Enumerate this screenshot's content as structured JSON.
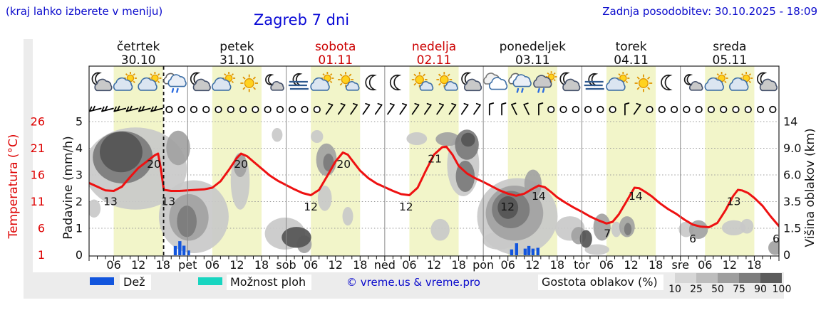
{
  "header": {
    "hint": "(kraj lahko izberete v meniju)",
    "title": "Zagreb 7 dni",
    "updated": "Zadnja posodobitev: 30.10.2025 - 18:09"
  },
  "axes": {
    "temp_label": "Temperatura (°C)",
    "temp_ticks": [
      26,
      21,
      16,
      11,
      6,
      1
    ],
    "precip_label": "Padavine (mm/h)",
    "precip_ticks": [
      5,
      4,
      3,
      2,
      1,
      0
    ],
    "cloud_label": "Višina oblakov (km)",
    "cloud_ticks": [
      "14",
      "9.0",
      "6.0",
      "3.5",
      "1.5",
      "0"
    ],
    "cloud_tick_km": [
      14,
      9,
      6,
      3.5,
      1.5,
      0
    ]
  },
  "legend": {
    "rain": "Dež",
    "showers": "Možnost ploh",
    "copyright": "© vreme.us & vreme.pro",
    "cloud_density": "Gostota oblakov (%)",
    "density_ticks": [
      "10",
      "25",
      "50",
      "75",
      "90",
      "100"
    ],
    "density_colors": [
      "#d6d6d6",
      "#bdbdbd",
      "#9e9e9e",
      "#7d7d7d",
      "#5c5c5c"
    ],
    "rain_color": "#1255dd",
    "showers_color": "#17d5c0"
  },
  "colors": {
    "day_band": "#f2f5c9",
    "grid": "#999999",
    "day_separator": "#8a8a8a",
    "temp_line": "#ee1111",
    "rain_bar": "#1255dd",
    "day_red": "#cc0000",
    "cloud_shades": {
      "25": "#c9c9c9",
      "40": "#b6b6b6",
      "50": "#a2a2a2",
      "75": "#7b7b7b",
      "90": "#555555"
    }
  },
  "chart_data": {
    "type": "meteogram",
    "title": "Zagreb 7 dni",
    "x_axis": "time, 7 days × 24 h, ticks every 6 h",
    "days": [
      {
        "name": "četrtek",
        "date": "30.10",
        "highlight": false
      },
      {
        "name": "petek",
        "date": "31.10",
        "highlight": false
      },
      {
        "name": "sobota",
        "date": "01.11",
        "highlight": true
      },
      {
        "name": "nedelja",
        "date": "02.11",
        "highlight": true
      },
      {
        "name": "ponedeljek",
        "date": "03.11",
        "highlight": false
      },
      {
        "name": "torek",
        "date": "04.11",
        "highlight": false
      },
      {
        "name": "sreda",
        "date": "05.11",
        "highlight": false
      }
    ],
    "hour_tick_labels": [
      "06",
      "12",
      "18"
    ],
    "day_boundary_labels": [
      "pet",
      "sob",
      "ned",
      "pon",
      "tor",
      "sre"
    ],
    "now_hour": 18.15,
    "temperature_c": {
      "range": [
        1,
        26
      ],
      "series": [
        [
          0,
          14.5
        ],
        [
          2,
          13.8
        ],
        [
          4,
          13.1
        ],
        [
          6,
          13.0
        ],
        [
          8,
          13.8
        ],
        [
          10,
          15.6
        ],
        [
          12,
          17.3
        ],
        [
          14,
          18.5
        ],
        [
          16,
          19.7
        ],
        [
          16.8,
          20.0
        ],
        [
          17.4,
          17.5
        ],
        [
          18.2,
          13.2
        ],
        [
          20,
          13.0
        ],
        [
          22,
          13.0
        ],
        [
          24,
          13.1
        ],
        [
          26,
          13.2
        ],
        [
          28,
          13.3
        ],
        [
          30,
          13.6
        ],
        [
          32,
          14.8
        ],
        [
          34,
          16.9
        ],
        [
          36,
          19.2
        ],
        [
          37,
          20.0
        ],
        [
          38.5,
          19.5
        ],
        [
          40,
          18.5
        ],
        [
          42,
          17.2
        ],
        [
          44,
          15.9
        ],
        [
          46,
          14.9
        ],
        [
          48,
          14.1
        ],
        [
          50,
          13.3
        ],
        [
          52,
          12.6
        ],
        [
          54,
          12.2
        ],
        [
          56,
          13.2
        ],
        [
          58,
          15.8
        ],
        [
          60,
          18.5
        ],
        [
          61.8,
          20.2
        ],
        [
          63,
          19.8
        ],
        [
          64.5,
          18.3
        ],
        [
          66,
          16.8
        ],
        [
          68,
          15.4
        ],
        [
          70,
          14.4
        ],
        [
          72,
          13.7
        ],
        [
          74,
          13.0
        ],
        [
          76,
          12.4
        ],
        [
          78,
          12.2
        ],
        [
          80,
          13.6
        ],
        [
          82,
          16.8
        ],
        [
          84,
          19.8
        ],
        [
          86,
          21.2
        ],
        [
          87,
          21.3
        ],
        [
          88.5,
          19.8
        ],
        [
          90,
          17.7
        ],
        [
          92,
          16.3
        ],
        [
          94,
          15.4
        ],
        [
          96,
          14.7
        ],
        [
          98,
          13.9
        ],
        [
          100,
          13.1
        ],
        [
          102,
          12.5
        ],
        [
          104,
          12.1
        ],
        [
          106,
          12.5
        ],
        [
          108,
          13.4
        ],
        [
          109.5,
          14.0
        ],
        [
          111,
          13.7
        ],
        [
          112.5,
          12.8
        ],
        [
          114,
          11.8
        ],
        [
          116,
          10.8
        ],
        [
          118,
          9.9
        ],
        [
          120,
          9.1
        ],
        [
          122,
          8.2
        ],
        [
          124,
          7.5
        ],
        [
          126,
          6.9
        ],
        [
          127.5,
          7.2
        ],
        [
          129,
          8.6
        ],
        [
          131,
          11.2
        ],
        [
          132.8,
          13.6
        ],
        [
          134,
          13.5
        ],
        [
          135.5,
          12.8
        ],
        [
          137,
          12.0
        ],
        [
          139,
          10.7
        ],
        [
          141,
          9.6
        ],
        [
          143,
          8.7
        ],
        [
          145,
          7.6
        ],
        [
          147,
          6.7
        ],
        [
          149,
          6.3
        ],
        [
          151,
          6.2
        ],
        [
          153,
          7.0
        ],
        [
          155,
          9.4
        ],
        [
          156.8,
          12.0
        ],
        [
          158,
          13.2
        ],
        [
          159,
          13.1
        ],
        [
          160.5,
          12.6
        ],
        [
          162,
          11.7
        ],
        [
          164,
          10.2
        ],
        [
          166,
          8.2
        ],
        [
          168,
          6.4
        ]
      ],
      "labels": [
        {
          "t": 5.2,
          "v": 13
        },
        {
          "t": 15.8,
          "v": 20
        },
        {
          "t": 19.3,
          "v": 13
        },
        {
          "t": 37.0,
          "v": 20
        },
        {
          "t": 54.0,
          "v": 12
        },
        {
          "t": 62.0,
          "v": 20
        },
        {
          "t": 77.2,
          "v": 12
        },
        {
          "t": 84.2,
          "v": 21
        },
        {
          "t": 101.9,
          "v": 12
        },
        {
          "t": 109.5,
          "v": 14
        },
        {
          "t": 126.2,
          "v": 7
        },
        {
          "t": 133.1,
          "v": 14
        },
        {
          "t": 147.0,
          "v": 6
        },
        {
          "t": 157.0,
          "v": 13
        },
        {
          "t": 167.3,
          "v": 6
        }
      ]
    },
    "precip_bars_mm": [
      {
        "t": 21.0,
        "mm": 0.35
      },
      {
        "t": 22.1,
        "mm": 0.53
      },
      {
        "t": 23.1,
        "mm": 0.36
      },
      {
        "t": 24.2,
        "mm": 0.18
      },
      {
        "t": 102.9,
        "mm": 0.22
      },
      {
        "t": 104.1,
        "mm": 0.45
      },
      {
        "t": 106.2,
        "mm": 0.25
      },
      {
        "t": 107.1,
        "mm": 0.35
      },
      {
        "t": 108.1,
        "mm": 0.25
      },
      {
        "t": 109.3,
        "mm": 0.28
      }
    ],
    "cloud_blobs": [
      {
        "t": 11.3,
        "km": 7.9,
        "rt": 12.5,
        "rkm": 5.0,
        "d": 25
      },
      {
        "t": 8.2,
        "km": 8.7,
        "rt": 7.3,
        "rkm": 3.5,
        "d": 75
      },
      {
        "t": 7.8,
        "km": 9.2,
        "rt": 5.2,
        "rkm": 2.9,
        "d": 90
      },
      {
        "t": 21.7,
        "km": 9.7,
        "rt": 2.9,
        "rkm": 2.6,
        "d": 50
      },
      {
        "t": 1.2,
        "km": 3.0,
        "rt": 1.6,
        "rkm": 0.7,
        "d": 25
      },
      {
        "t": 25.5,
        "km": 2.8,
        "rt": 8.5,
        "rkm": 2.7,
        "d": 25
      },
      {
        "t": 24.3,
        "km": 2.5,
        "rt": 4.8,
        "rkm": 1.7,
        "d": 50
      },
      {
        "t": 23.8,
        "km": 2.1,
        "rt": 2.4,
        "rkm": 1.1,
        "d": 75
      },
      {
        "t": 36.8,
        "km": 5.7,
        "rt": 2.3,
        "rkm": 2.8,
        "d": 25
      },
      {
        "t": 36.8,
        "km": 7.1,
        "rt": 1.6,
        "rkm": 1.3,
        "d": 50
      },
      {
        "t": 45.8,
        "km": 11.5,
        "rt": 1.3,
        "rkm": 1.3,
        "d": 25
      },
      {
        "t": 47.7,
        "km": 1.3,
        "rt": 4.9,
        "rkm": 1.0,
        "d": 25
      },
      {
        "t": 50.5,
        "km": 1.0,
        "rt": 3.6,
        "rkm": 0.6,
        "d": 90
      },
      {
        "t": 52.4,
        "km": 0.6,
        "rt": 1.8,
        "rkm": 0.5,
        "d": 50
      },
      {
        "t": 55.5,
        "km": 11.2,
        "rt": 1.5,
        "rkm": 1.2,
        "d": 25
      },
      {
        "t": 57.8,
        "km": 7.9,
        "rt": 2.5,
        "rkm": 2.0,
        "d": 50
      },
      {
        "t": 58.3,
        "km": 7.4,
        "rt": 1.3,
        "rkm": 1.0,
        "d": 75
      },
      {
        "t": 57.4,
        "km": 3.9,
        "rt": 1.7,
        "rkm": 1.1,
        "d": 25
      },
      {
        "t": 63.0,
        "km": 2.4,
        "rt": 1.3,
        "rkm": 0.7,
        "d": 25
      },
      {
        "t": 79.8,
        "km": 10.8,
        "rt": 2.5,
        "rkm": 1.2,
        "d": 25
      },
      {
        "t": 87.3,
        "km": 10.7,
        "rt": 2.9,
        "rkm": 1.3,
        "d": 50
      },
      {
        "t": 92.0,
        "km": 10.1,
        "rt": 2.9,
        "rkm": 2.4,
        "d": 75
      },
      {
        "t": 92.3,
        "km": 10.6,
        "rt": 1.7,
        "rkm": 1.3,
        "d": 90
      },
      {
        "t": 91.6,
        "km": 6.0,
        "rt": 2.3,
        "rkm": 1.6,
        "d": 75
      },
      {
        "t": 91.1,
        "km": 7.9,
        "rt": 3.9,
        "rkm": 3.9,
        "d": 25
      },
      {
        "t": 85.5,
        "km": 1.5,
        "rt": 2.3,
        "rkm": 0.7,
        "d": 25
      },
      {
        "t": 104.3,
        "km": 2.8,
        "rt": 9.8,
        "rkm": 2.9,
        "d": 25
      },
      {
        "t": 103.6,
        "km": 2.9,
        "rt": 7.0,
        "rkm": 2.1,
        "d": 50
      },
      {
        "t": 102.7,
        "km": 3.0,
        "rt": 4.6,
        "rkm": 1.5,
        "d": 75
      },
      {
        "t": 102.0,
        "km": 3.1,
        "rt": 2.5,
        "rkm": 0.9,
        "d": 90
      },
      {
        "t": 99.8,
        "km": 0.8,
        "rt": 3.9,
        "rkm": 0.5,
        "d": 25
      },
      {
        "t": 108.1,
        "km": 5.2,
        "rt": 2.1,
        "rkm": 1.4,
        "d": 50
      },
      {
        "t": 117.1,
        "km": 1.6,
        "rt": 3.6,
        "rkm": 0.8,
        "d": 25
      },
      {
        "t": 119.2,
        "km": 1.1,
        "rt": 1.8,
        "rkm": 0.5,
        "d": 50
      },
      {
        "t": 121.0,
        "km": 0.9,
        "rt": 1.5,
        "rkm": 0.5,
        "d": 90
      },
      {
        "t": 124.9,
        "km": 1.7,
        "rt": 2.1,
        "rkm": 0.9,
        "d": 50
      },
      {
        "t": 123.7,
        "km": 0.3,
        "rt": 3.0,
        "rkm": 0.3,
        "d": 25
      },
      {
        "t": 128.4,
        "km": 1.5,
        "rt": 1.2,
        "rkm": 0.5,
        "d": 25
      },
      {
        "t": 131.0,
        "km": 1.7,
        "rt": 1.9,
        "rkm": 0.7,
        "d": 50
      },
      {
        "t": 131.2,
        "km": 1.5,
        "rt": 0.9,
        "rkm": 0.4,
        "d": 75
      },
      {
        "t": 145.4,
        "km": 1.5,
        "rt": 1.8,
        "rkm": 0.5,
        "d": 25
      },
      {
        "t": 148.4,
        "km": 1.5,
        "rt": 2.3,
        "rkm": 0.6,
        "d": 50
      },
      {
        "t": 157.0,
        "km": 1.6,
        "rt": 2.9,
        "rkm": 0.5,
        "d": 25
      },
      {
        "t": 160.2,
        "km": 1.7,
        "rt": 1.6,
        "rkm": 0.5,
        "d": 25
      },
      {
        "t": 167.1,
        "km": 0.4,
        "rt": 1.7,
        "rkm": 0.4,
        "d": 50
      }
    ],
    "weather_icons": [
      "moon-cloud",
      "sun-cloud",
      "sun-cloud",
      "rain-cloud",
      "moon-cloud",
      "sun-cloud",
      "sun",
      "moon-cloud-small",
      "fog-moon",
      "sun-cloud",
      "sun-cloud-small",
      "moon",
      "moon",
      "sun-cloud-small",
      "sun-cloud-small",
      "moon-cloud",
      "clouds",
      "rain-cloud",
      "rain-sun-cloud",
      "moon-cloud",
      "fog-moon",
      "sun-cloud",
      "sun",
      "moon",
      "moon-cloud-small",
      "sun-cloud",
      "sun-cloud",
      "moon-cloud"
    ],
    "wind_3h": [
      "w",
      "w",
      "w",
      "w",
      "w",
      "w",
      "calm",
      "calm",
      "calm",
      "calm",
      "calm",
      "calm",
      "calm",
      "calm",
      "calm",
      "calm",
      "calm",
      "calm",
      "calm",
      "sw",
      "sw",
      "sw",
      "sw",
      "sw",
      "sw",
      "sw",
      "sw",
      "sw",
      "sw",
      "sw",
      "sw",
      "sw",
      "n",
      "n",
      "nw",
      "nw",
      "n",
      "calm",
      "calm",
      "calm",
      "calm",
      "calm",
      "calm",
      "n",
      "sw",
      "calm",
      "calm",
      "calm",
      "calm",
      "calm",
      "calm",
      "calm",
      "calm",
      "calm",
      "calm",
      "calm"
    ]
  }
}
